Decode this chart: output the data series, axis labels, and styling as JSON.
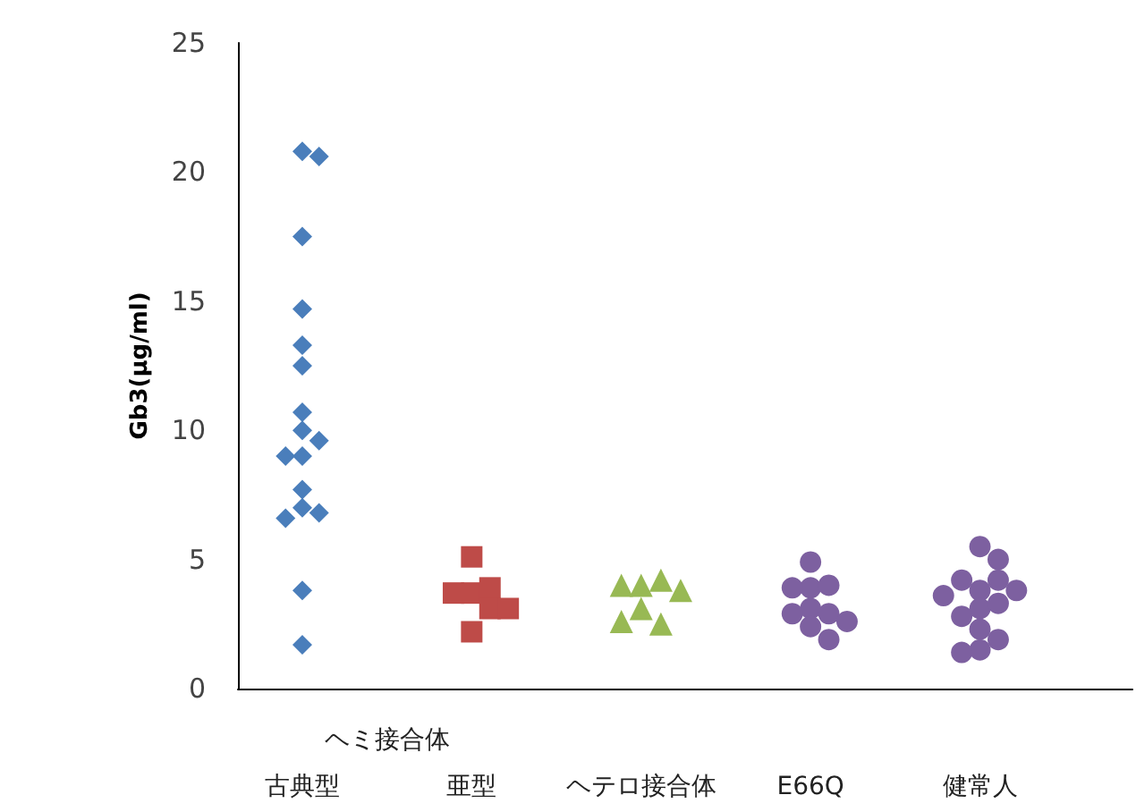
{
  "chart_data": {
    "type": "scatter",
    "ylabel": "Gb3(μg/ml)",
    "categories": [
      "古典型",
      "亜型",
      "ヘテロ接合体",
      "E66Q",
      "健常人"
    ],
    "annotations": [
      "ヘミ接合体"
    ],
    "ylim": [
      0,
      25
    ],
    "yticks": [
      0,
      5,
      10,
      15,
      20,
      25
    ],
    "grid": false,
    "series": [
      {
        "color": "#4a7ebb",
        "marker": "diamond",
        "x": [
          "古典型",
          "古典型",
          "古典型",
          "古典型",
          "古典型",
          "古典型",
          "古典型",
          "古典型",
          "古典型",
          "古典型",
          "古典型",
          "古典型",
          "古典型",
          "古典型",
          "古典型",
          "古典型",
          "古典型"
        ],
        "values": [
          20.8,
          20.6,
          17.5,
          14.7,
          13.3,
          12.5,
          10.7,
          10.0,
          9.6,
          9.0,
          9.0,
          7.7,
          7.0,
          6.8,
          6.6,
          3.8,
          1.7
        ]
      },
      {
        "color": "#be4b48",
        "marker": "square",
        "x": [
          "亜型",
          "亜型",
          "亜型",
          "亜型",
          "亜型",
          "亜型",
          "亜型"
        ],
        "values": [
          5.1,
          3.7,
          3.9,
          3.7,
          3.1,
          3.1,
          2.2
        ]
      },
      {
        "color": "#98b954",
        "marker": "triangle",
        "x": [
          "ヘテロ接合体",
          "ヘテロ接合体",
          "ヘテロ接合体",
          "ヘテロ接合体",
          "ヘテロ接合体",
          "ヘテロ接合体",
          "ヘテロ接合体"
        ],
        "values": [
          4.0,
          4.2,
          4.0,
          3.8,
          3.1,
          2.5,
          2.6
        ]
      },
      {
        "color": "#7d60a0",
        "marker": "circle",
        "x": [
          "E66Q",
          "E66Q",
          "E66Q",
          "E66Q",
          "E66Q",
          "E66Q",
          "E66Q",
          "E66Q",
          "E66Q",
          "E66Q"
        ],
        "values": [
          4.9,
          3.9,
          4.0,
          3.9,
          3.1,
          2.9,
          2.9,
          2.4,
          2.6,
          1.9
        ]
      },
      {
        "color": "#7d60a0",
        "marker": "circle",
        "x": [
          "健常人",
          "健常人",
          "健常人",
          "健常人",
          "健常人",
          "健常人",
          "健常人",
          "健常人",
          "健常人",
          "健常人",
          "健常人",
          "健常人",
          "健常人",
          "健常人"
        ],
        "values": [
          5.5,
          5.0,
          3.8,
          4.2,
          4.2,
          3.8,
          3.6,
          3.1,
          3.3,
          2.8,
          2.3,
          1.9,
          1.5,
          1.4
        ]
      }
    ]
  }
}
